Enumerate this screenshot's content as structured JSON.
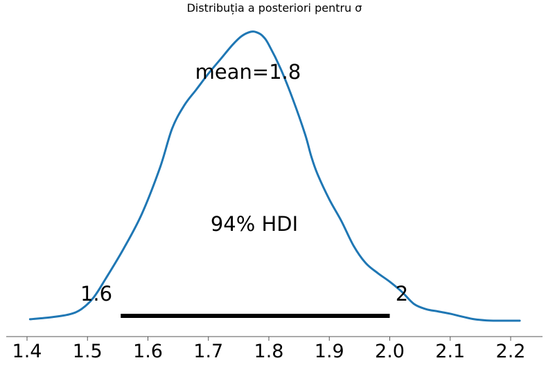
{
  "chart_data": {
    "type": "area",
    "title": "Distribuția a posteriori pentru σ",
    "xlabel": "",
    "ylabel": "",
    "xlim": [
      1.4,
      2.22
    ],
    "grid": false,
    "legend": "none",
    "xticks": [
      "1.4",
      "1.5",
      "1.6",
      "1.7",
      "1.8",
      "1.9",
      "2.0",
      "2.1",
      "2.2"
    ],
    "x": [
      1.405,
      1.44,
      1.47,
      1.49,
      1.51,
      1.53,
      1.56,
      1.59,
      1.62,
      1.64,
      1.66,
      1.68,
      1.7,
      1.72,
      1.74,
      1.755,
      1.77,
      1.78,
      1.79,
      1.8,
      1.82,
      1.84,
      1.86,
      1.87,
      1.88,
      1.9,
      1.92,
      1.94,
      1.96,
      1.98,
      2.0,
      2.02,
      2.04,
      2.06,
      2.08,
      2.1,
      2.12,
      2.14,
      2.16,
      2.18,
      2.2,
      2.215
    ],
    "density": [
      0.005,
      0.012,
      0.022,
      0.04,
      0.08,
      0.145,
      0.25,
      0.37,
      0.53,
      0.665,
      0.745,
      0.8,
      0.855,
      0.905,
      0.955,
      0.985,
      1.0,
      0.998,
      0.985,
      0.955,
      0.87,
      0.765,
      0.645,
      0.57,
      0.51,
      0.42,
      0.345,
      0.26,
      0.2,
      0.165,
      0.135,
      0.1,
      0.058,
      0.04,
      0.032,
      0.024,
      0.014,
      0.005,
      0.001,
      0.0,
      0.0,
      0.0
    ],
    "mean_label": "mean=1.8",
    "hdi": {
      "prob_label": "94% HDI",
      "lower": 1.555,
      "upper": 2.0,
      "lower_label": "1.6",
      "upper_label": "2"
    },
    "colors": {
      "line": "#1f77b4",
      "hdi_bar": "#000000",
      "axis": "#555555"
    }
  }
}
